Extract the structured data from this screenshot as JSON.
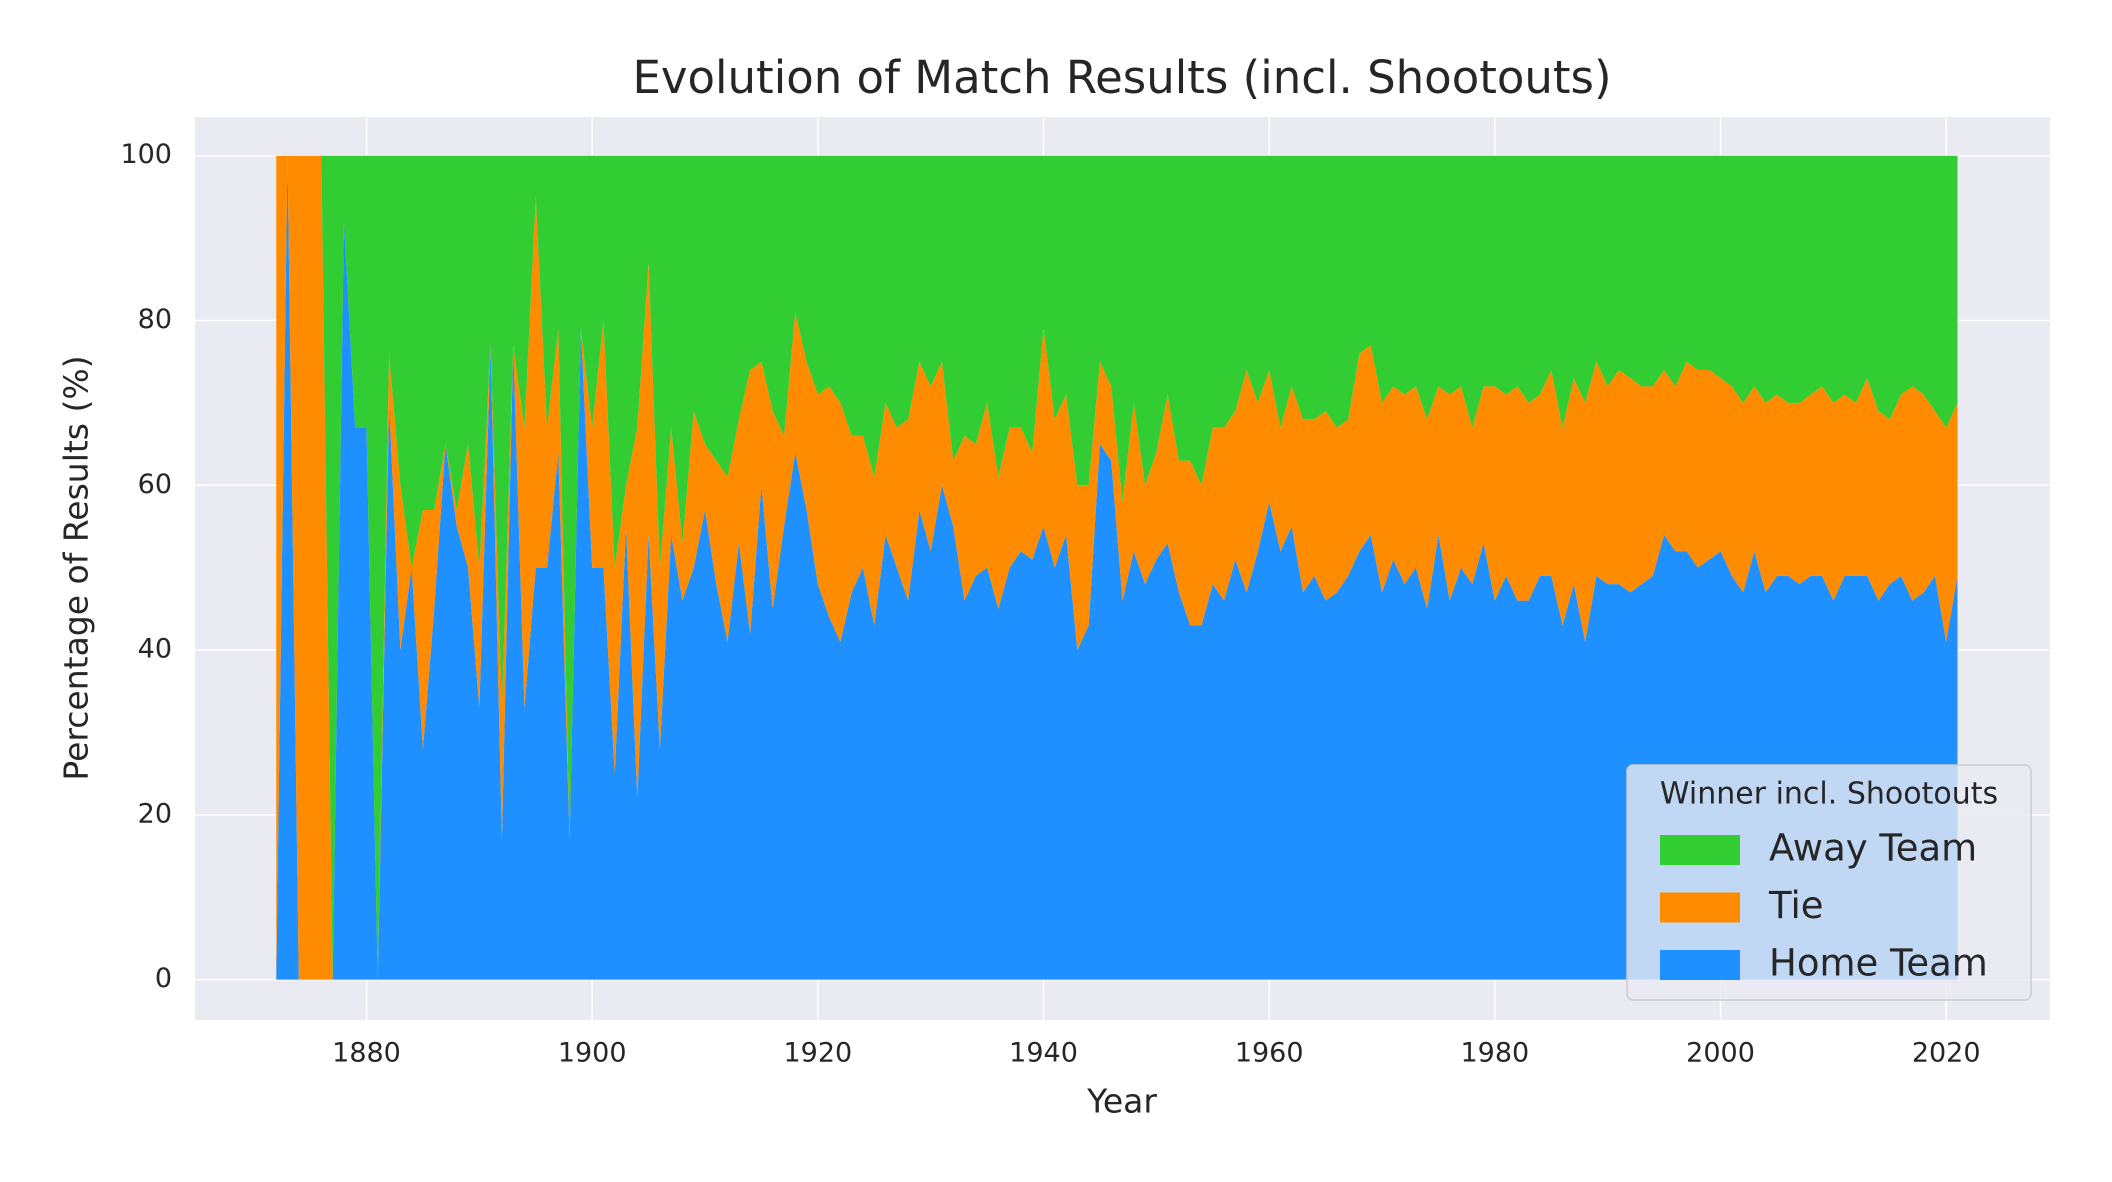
{
  "chart_data": {
    "type": "stacked_area",
    "title": "Evolution of Match Results (incl. Shootouts)",
    "x_label": "Year",
    "y_label": "Percentage of Results (%)",
    "legend_title": "Winner incl. Shootouts",
    "legend_position": "lower right",
    "grid": true,
    "xlim": [
      1864.8,
      2029.2
    ],
    "ylim": [
      -4.9,
      104.7
    ],
    "xticks": [
      1880,
      1900,
      1920,
      1940,
      1960,
      1980,
      2000,
      2020
    ],
    "yticks": [
      0,
      20,
      40,
      60,
      80,
      100
    ],
    "x": [
      1872,
      1873,
      1874,
      1875,
      1876,
      1877,
      1878,
      1879,
      1880,
      1881,
      1882,
      1883,
      1884,
      1885,
      1886,
      1887,
      1888,
      1889,
      1890,
      1891,
      1892,
      1893,
      1894,
      1895,
      1896,
      1897,
      1898,
      1899,
      1900,
      1901,
      1902,
      1903,
      1904,
      1905,
      1906,
      1907,
      1908,
      1909,
      1910,
      1911,
      1912,
      1913,
      1914,
      1915,
      1916,
      1917,
      1918,
      1919,
      1920,
      1921,
      1922,
      1923,
      1924,
      1925,
      1926,
      1927,
      1928,
      1929,
      1930,
      1931,
      1932,
      1933,
      1934,
      1935,
      1936,
      1937,
      1938,
      1939,
      1940,
      1941,
      1942,
      1943,
      1944,
      1945,
      1946,
      1947,
      1948,
      1949,
      1950,
      1951,
      1952,
      1953,
      1954,
      1955,
      1956,
      1957,
      1958,
      1959,
      1960,
      1961,
      1962,
      1963,
      1964,
      1965,
      1966,
      1967,
      1968,
      1969,
      1970,
      1971,
      1972,
      1973,
      1974,
      1975,
      1976,
      1977,
      1978,
      1979,
      1980,
      1981,
      1982,
      1983,
      1984,
      1985,
      1986,
      1987,
      1988,
      1989,
      1990,
      1991,
      1992,
      1993,
      1994,
      1995,
      1996,
      1997,
      1998,
      1999,
      2000,
      2001,
      2002,
      2003,
      2004,
      2005,
      2006,
      2007,
      2008,
      2009,
      2010,
      2011,
      2012,
      2013,
      2014,
      2015,
      2016,
      2017,
      2018,
      2019,
      2020,
      2021
    ],
    "series": [
      {
        "name": "Home Team",
        "color": "#1e90ff",
        "values": [
          0,
          100,
          0,
          0,
          0,
          0,
          92,
          67,
          67,
          0,
          70,
          40,
          50,
          28,
          45,
          65,
          55,
          50,
          33,
          77,
          17,
          77,
          33,
          50,
          50,
          64,
          17,
          79,
          50,
          50,
          25,
          55,
          22,
          54,
          28,
          54,
          46,
          50,
          57,
          48,
          41,
          53,
          42,
          60,
          45,
          55,
          64,
          57,
          48,
          44,
          41,
          47,
          50,
          43,
          54,
          50,
          46,
          57,
          52,
          60,
          55,
          46,
          49,
          50,
          45,
          50,
          52,
          51,
          55,
          50,
          54,
          40,
          43,
          65,
          63,
          46,
          52,
          48,
          51,
          53,
          47,
          43,
          43,
          48,
          46,
          51,
          47,
          52,
          58,
          52,
          55,
          47,
          49,
          46,
          47,
          49,
          52,
          54,
          47,
          51,
          48,
          50,
          45,
          54,
          46,
          50,
          48,
          53,
          46,
          49,
          46,
          46,
          49,
          49,
          43,
          48,
          41,
          49,
          48,
          48,
          47,
          48,
          49,
          54,
          52,
          52,
          50,
          51,
          52,
          49,
          47,
          52,
          47,
          49,
          49,
          48,
          49,
          49,
          46,
          49,
          49,
          49,
          46,
          48,
          49,
          46,
          47,
          49,
          41,
          49
        ]
      },
      {
        "name": "Tie",
        "color": "#ff8c00",
        "values": [
          100,
          0,
          100,
          100,
          100,
          0,
          0,
          0,
          0,
          0,
          6,
          20,
          0,
          29,
          12,
          0,
          2,
          15,
          17,
          0,
          16,
          0,
          34,
          45,
          17,
          15,
          0,
          0,
          17,
          30,
          25,
          5,
          45,
          33,
          22,
          13,
          7,
          19,
          8,
          15,
          20,
          15,
          32,
          15,
          24,
          11,
          17,
          18,
          23,
          28,
          29,
          19,
          16,
          18,
          16,
          17,
          22,
          18,
          20,
          15,
          8,
          20,
          16,
          20,
          16,
          17,
          15,
          13,
          24,
          18,
          17,
          20,
          17,
          10,
          9,
          12,
          18,
          12,
          13,
          18,
          16,
          20,
          17,
          19,
          21,
          18,
          27,
          18,
          16,
          15,
          17,
          21,
          19,
          23,
          20,
          19,
          24,
          23,
          23,
          21,
          23,
          22,
          23,
          18,
          25,
          22,
          19,
          19,
          26,
          22,
          26,
          24,
          22,
          25,
          24,
          25,
          29,
          26,
          24,
          26,
          26,
          24,
          23,
          20,
          20,
          23,
          24,
          23,
          21,
          23,
          23,
          20,
          23,
          22,
          21,
          22,
          22,
          23,
          24,
          22,
          21,
          24,
          23,
          20,
          22,
          26,
          24,
          20,
          26,
          21
        ]
      },
      {
        "name": "Away Team",
        "color": "#32cd32",
        "values": [
          0,
          0,
          0,
          0,
          0,
          100,
          8,
          33,
          33,
          100,
          24,
          40,
          50,
          43,
          43,
          35,
          43,
          35,
          50,
          23,
          67,
          23,
          33,
          5,
          33,
          21,
          83,
          21,
          33,
          20,
          50,
          40,
          33,
          13,
          50,
          33,
          47,
          31,
          35,
          37,
          39,
          32,
          26,
          25,
          31,
          34,
          19,
          25,
          29,
          28,
          30,
          34,
          34,
          39,
          30,
          33,
          32,
          25,
          28,
          25,
          37,
          34,
          35,
          30,
          39,
          33,
          33,
          36,
          21,
          32,
          29,
          40,
          40,
          25,
          28,
          42,
          30,
          40,
          36,
          29,
          37,
          37,
          40,
          33,
          33,
          31,
          26,
          30,
          26,
          33,
          28,
          32,
          32,
          31,
          33,
          32,
          24,
          23,
          30,
          28,
          29,
          28,
          32,
          28,
          29,
          28,
          33,
          28,
          28,
          29,
          28,
          30,
          29,
          26,
          33,
          27,
          30,
          25,
          28,
          26,
          27,
          28,
          28,
          26,
          28,
          25,
          26,
          26,
          27,
          28,
          30,
          28,
          30,
          29,
          30,
          30,
          29,
          28,
          30,
          29,
          30,
          27,
          31,
          32,
          29,
          28,
          29,
          31,
          33,
          30
        ]
      }
    ]
  }
}
